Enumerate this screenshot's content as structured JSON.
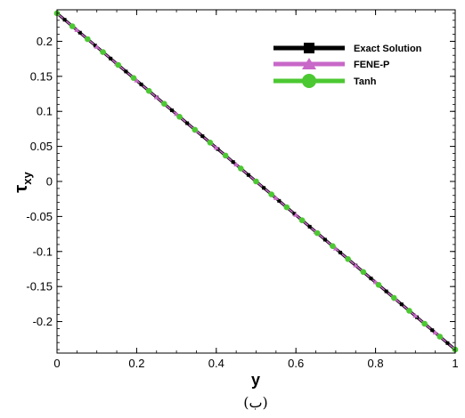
{
  "chart_data": {
    "type": "line",
    "xlabel": "y",
    "ylabel_main": "τ",
    "ylabel_sub": "xy",
    "xlim": [
      0,
      1
    ],
    "ylim": [
      -0.245,
      0.245
    ],
    "xticks": [
      0,
      0.2,
      0.4,
      0.6,
      0.8,
      1
    ],
    "xtick_labels": [
      "0",
      "0.2",
      "0.4",
      "0.6",
      "0.8",
      "1"
    ],
    "yticks": [
      0.2,
      0.15,
      0.1,
      0.05,
      0,
      -0.05,
      -0.1,
      -0.15,
      -0.2
    ],
    "ytick_labels": [
      "0.2",
      "0.15",
      "0.1",
      "0.05",
      "0",
      "-0.05",
      "-0.1",
      "-0.15",
      "-0.2"
    ],
    "grid": false,
    "legend_position": "top-right",
    "series": [
      {
        "name": "Exact Solution",
        "color": "#000000",
        "marker": "square",
        "x": [
          0,
          1
        ],
        "values": [
          0.24,
          -0.24
        ]
      },
      {
        "name": "FENE-P",
        "color": "#c868c8",
        "marker": "triangle",
        "x": [
          0,
          0.05,
          0.1,
          0.15,
          0.2,
          0.25,
          0.3,
          0.35,
          0.4,
          0.45,
          0.5,
          0.55,
          0.6,
          0.65,
          0.7,
          0.75,
          0.8,
          0.85,
          0.9,
          0.95,
          1
        ],
        "values": [
          0.24,
          0.216,
          0.192,
          0.168,
          0.144,
          0.12,
          0.096,
          0.072,
          0.048,
          0.024,
          0,
          -0.024,
          -0.048,
          -0.072,
          -0.096,
          -0.12,
          -0.144,
          -0.168,
          -0.192,
          -0.216,
          -0.24
        ]
      },
      {
        "name": "Tanh",
        "color": "#4cc832",
        "marker": "circle",
        "x": [
          0,
          0.0385,
          0.0769,
          0.1154,
          0.1538,
          0.1923,
          0.2308,
          0.2692,
          0.3077,
          0.3462,
          0.3846,
          0.4231,
          0.4615,
          0.5,
          0.5385,
          0.5769,
          0.6154,
          0.6538,
          0.6923,
          0.7308,
          0.7692,
          0.8077,
          0.8462,
          0.8846,
          0.9231,
          0.9615,
          1
        ],
        "values": [
          0.24,
          0.2215,
          0.2031,
          0.1846,
          0.1662,
          0.1477,
          0.1292,
          0.1108,
          0.0923,
          0.0738,
          0.0554,
          0.0369,
          0.0185,
          0,
          -0.0185,
          -0.0369,
          -0.0554,
          -0.0738,
          -0.0923,
          -0.1108,
          -0.1292,
          -0.1477,
          -0.1662,
          -0.1846,
          -0.2031,
          -0.2215,
          -0.24
        ]
      }
    ],
    "exact_marker_x": [
      0.0192,
      0.0577,
      0.0962,
      0.1346,
      0.1731,
      0.2115,
      0.25,
      0.2885,
      0.3269,
      0.3654,
      0.4038,
      0.4423,
      0.4808,
      0.5192,
      0.5577,
      0.5962,
      0.6346,
      0.6731,
      0.7115,
      0.75,
      0.7885,
      0.8269,
      0.8654,
      0.9038,
      0.9423,
      0.9808
    ]
  },
  "caption": "(ب)"
}
